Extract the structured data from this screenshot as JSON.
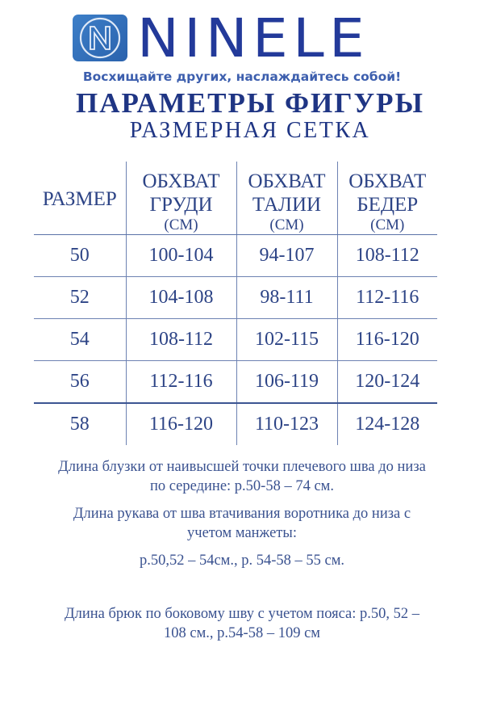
{
  "header": {
    "brand": "NINELE",
    "logo_letter": "N",
    "tagline": "Восхищайте других, наслаждайтесь собой!",
    "title": "ПАРАМЕТРЫ ФИГУРЫ",
    "subtitle": "РАЗМЕРНАЯ СЕТКА"
  },
  "table": {
    "columns": [
      {
        "line1": "РАЗМЕР"
      },
      {
        "line1": "ОБХВАТ",
        "line2": "ГРУДИ",
        "unit": "(СМ)"
      },
      {
        "line1": "ОБХВАТ",
        "line2": "ТАЛИИ",
        "unit": "(СМ)"
      },
      {
        "line1": "ОБХВАТ",
        "line2": "БЕДЕР",
        "unit": "(СМ)"
      }
    ],
    "rows": [
      [
        "50",
        "100-104",
        "94-107",
        "108-112"
      ],
      [
        "52",
        "104-108",
        "98-111",
        "112-116"
      ],
      [
        "54",
        "108-112",
        "102-115",
        "116-120"
      ],
      [
        "56",
        "112-116",
        "106-119",
        "120-124"
      ],
      [
        "58",
        "116-120",
        "110-123",
        "124-128"
      ]
    ]
  },
  "notes": {
    "blouse": [
      "Длина блузки от наивысшей точки плечевого шва до низа",
      "по середине: р.50-58 – 74 см."
    ],
    "sleeve": [
      "Длина рукава от шва втачивания воротника до низа с",
      "учетом манжеты:",
      "р.50,52 – 54см., р. 54-58 – 55 см."
    ],
    "trousers": [
      "Длина брюк по боковому шву с учетом пояса: р.50, 52 –",
      "108 см., р.54-58 – 109 см"
    ]
  },
  "colors": {
    "brand": "#233a9a",
    "text": "#2d4486",
    "logo_bg": "#2f6ab5"
  }
}
